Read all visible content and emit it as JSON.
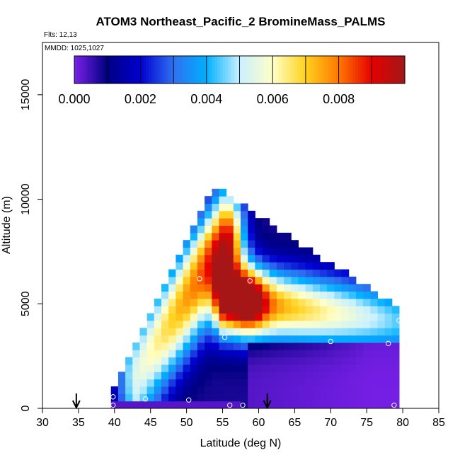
{
  "chart_data": {
    "type": "heatmap",
    "title": "ATOM3 Northeast_Pacific_2 BromineMass_PALMS",
    "flights_note": "Flts: 12,13",
    "dates_note": "MMDD: 1025,1027",
    "xlabel": "Latitude (deg N)",
    "ylabel": "Altitude (m)",
    "xlim": [
      30,
      85
    ],
    "ylim": [
      0,
      17500
    ],
    "x_ticks": [
      30,
      35,
      40,
      45,
      50,
      55,
      60,
      65,
      70,
      75,
      80,
      85
    ],
    "y_ticks": [
      0,
      5000,
      10000,
      15000
    ],
    "colorbar": {
      "min": 0,
      "max": 0.01,
      "ticks": [
        0.0,
        0.002,
        0.004,
        0.006,
        0.008
      ],
      "tick_labels": [
        "0.000",
        "0.002",
        "0.004",
        "0.006",
        "0.008"
      ],
      "colors": [
        "#7a20e8",
        "#000080",
        "#0000d0",
        "#3070f0",
        "#00b0ff",
        "#c8f0ff",
        "#ffffc8",
        "#ffd21e",
        "#ff7800",
        "#e60000",
        "#a01818"
      ]
    },
    "grid": false,
    "cell_size": {
      "lat": 1.0,
      "alt": 350
    },
    "domain": {
      "lat_min": 39.5,
      "lat_max": 79.5,
      "alt_min": 0,
      "apex": {
        "lat": 53.5,
        "alt": 10500
      },
      "right_corner": {
        "lat": 79.5,
        "alt": 4600
      }
    },
    "field_features": [
      {
        "name": "diagonal high band",
        "from": {
          "lat": 43,
          "alt": 1200
        },
        "to": {
          "lat": 55.5,
          "alt": 8000
        }
      },
      {
        "name": "eastern high band",
        "from": {
          "lat": 55.5,
          "alt": 5200
        },
        "to": {
          "lat": 79,
          "alt": 4200
        }
      },
      {
        "name": "core maximum",
        "lat": 58.5,
        "alt": 5200,
        "value": 0.0095
      }
    ],
    "sample_points": [
      {
        "lat": 39.8,
        "alt": 150
      },
      {
        "lat": 39.8,
        "alt": 550
      },
      {
        "lat": 39.8,
        "alt": 1300
      },
      {
        "lat": 44.3,
        "alt": 450
      },
      {
        "lat": 50.3,
        "alt": 400
      },
      {
        "lat": 51.8,
        "alt": 6200
      },
      {
        "lat": 53.2,
        "alt": 10300
      },
      {
        "lat": 55.3,
        "alt": 3400
      },
      {
        "lat": 56.0,
        "alt": 150
      },
      {
        "lat": 57.8,
        "alt": 150
      },
      {
        "lat": 58.8,
        "alt": 6100
      },
      {
        "lat": 70.0,
        "alt": 3200
      },
      {
        "lat": 78.0,
        "alt": 3100
      },
      {
        "lat": 78.8,
        "alt": 150
      },
      {
        "lat": 79.5,
        "alt": 4200
      }
    ],
    "arrow_markers_lat": [
      34.7,
      61.2
    ]
  }
}
